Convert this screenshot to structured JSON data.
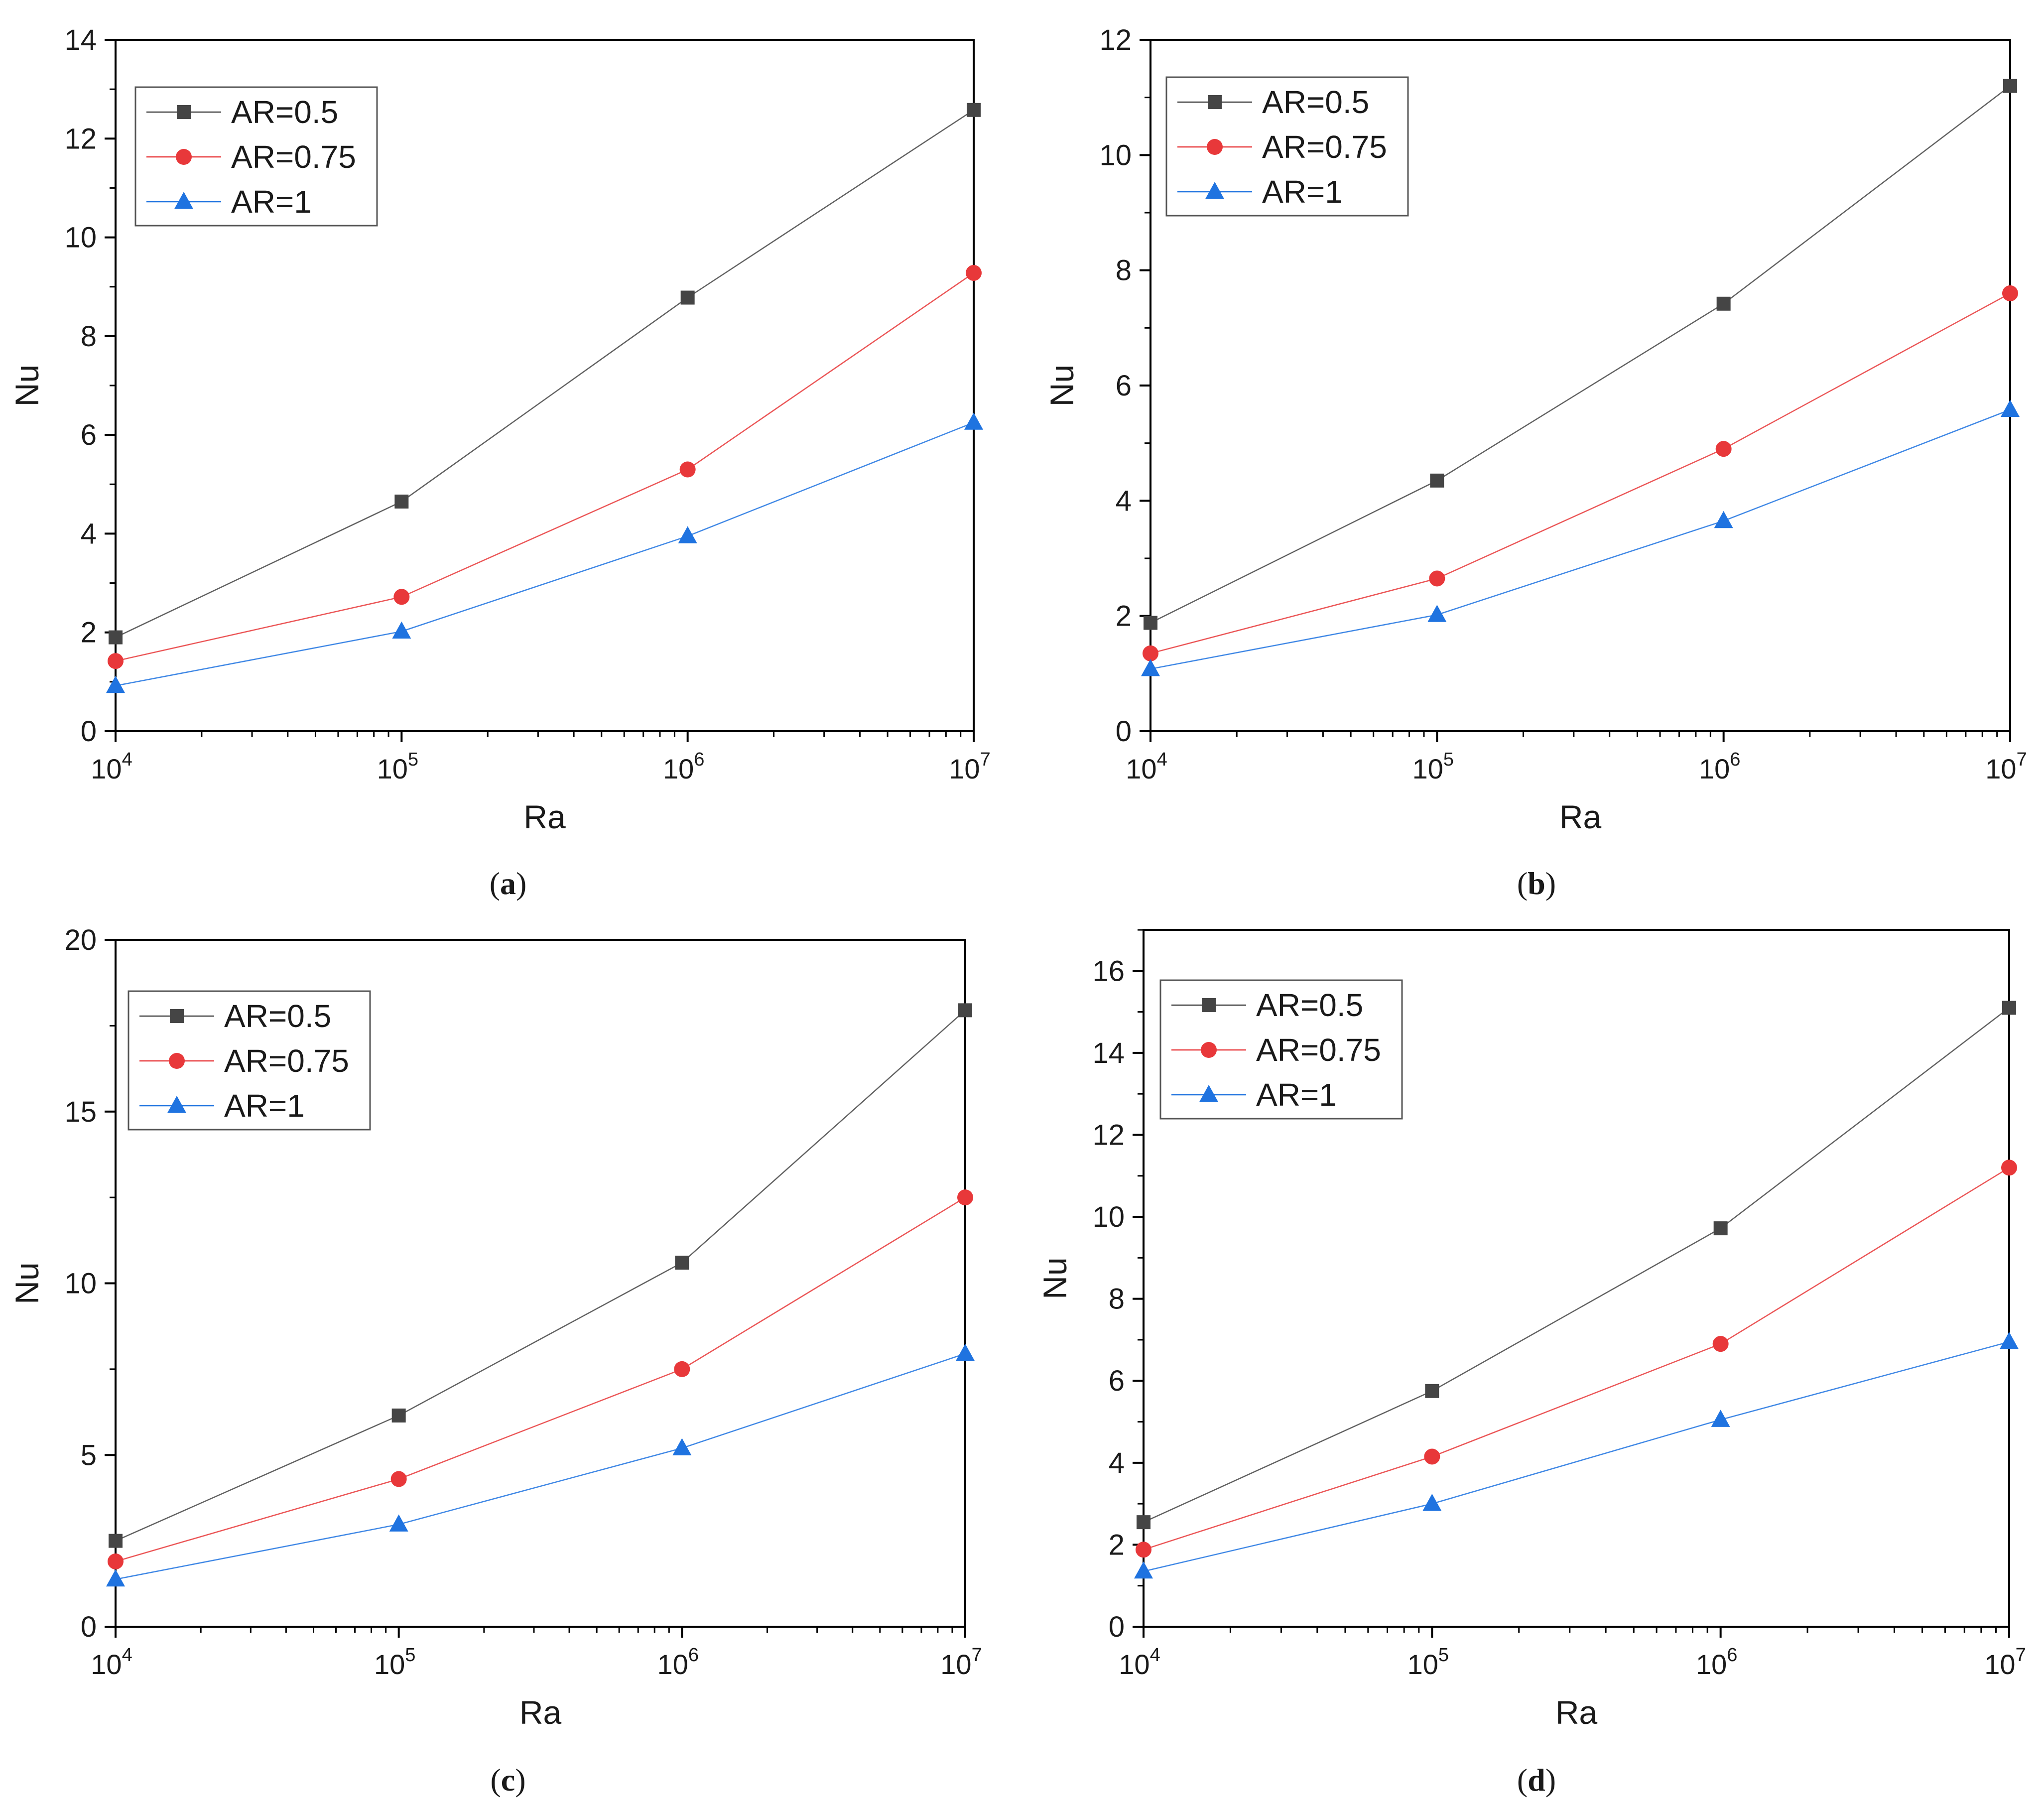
{
  "figure": {
    "colors": {
      "ar05": "#454545",
      "ar075": "#e8383a",
      "ar1": "#1f73e0",
      "axis": "#000000",
      "legend_border": "#555555"
    }
  },
  "chart_data": [
    {
      "id": "a",
      "type": "line",
      "caption": "(a)",
      "xlabel": "Ra",
      "ylabel": "Nu",
      "x_scale": "log",
      "xlim": [
        10000,
        10000000
      ],
      "x": [
        10000,
        100000,
        1000000,
        10000000
      ],
      "xticks": [
        {
          "base": "10",
          "exp": "4"
        },
        {
          "base": "10",
          "exp": "5"
        },
        {
          "base": "10",
          "exp": "6"
        },
        {
          "base": "10",
          "exp": "7"
        }
      ],
      "ylim": [
        0,
        14
      ],
      "yticks": [
        "0",
        "2",
        "4",
        "6",
        "8",
        "10",
        "12",
        "14"
      ],
      "y_tick_values": [
        0,
        2,
        4,
        6,
        8,
        10,
        12,
        14
      ],
      "legend_position": "top-left",
      "series": [
        {
          "name": "AR=0.5",
          "marker": "square",
          "color": "#454545",
          "values": [
            1.9,
            4.65,
            8.78,
            12.58
          ]
        },
        {
          "name": "AR=0.75",
          "marker": "circle",
          "color": "#e8383a",
          "values": [
            1.42,
            2.72,
            5.3,
            9.28
          ]
        },
        {
          "name": "AR=1",
          "marker": "triangle",
          "color": "#1f73e0",
          "values": [
            0.92,
            2.02,
            3.95,
            6.25
          ]
        }
      ]
    },
    {
      "id": "b",
      "type": "line",
      "caption": "(b)",
      "xlabel": "Ra",
      "ylabel": "Nu",
      "x_scale": "log",
      "xlim": [
        10000,
        10000000
      ],
      "x": [
        10000,
        100000,
        1000000,
        10000000
      ],
      "xticks": [
        {
          "base": "10",
          "exp": "4"
        },
        {
          "base": "10",
          "exp": "5"
        },
        {
          "base": "10",
          "exp": "6"
        },
        {
          "base": "10",
          "exp": "7"
        }
      ],
      "ylim": [
        0,
        12
      ],
      "yticks": [
        "0",
        "2",
        "4",
        "6",
        "8",
        "10",
        "12"
      ],
      "y_tick_values": [
        0,
        2,
        4,
        6,
        8,
        10,
        12
      ],
      "legend_position": "top-left",
      "series": [
        {
          "name": "AR=0.5",
          "marker": "square",
          "color": "#454545",
          "values": [
            1.88,
            4.35,
            7.42,
            11.2
          ]
        },
        {
          "name": "AR=0.75",
          "marker": "circle",
          "color": "#e8383a",
          "values": [
            1.35,
            2.65,
            4.9,
            7.6
          ]
        },
        {
          "name": "AR=1",
          "marker": "triangle",
          "color": "#1f73e0",
          "values": [
            1.08,
            2.02,
            3.65,
            5.58
          ]
        }
      ]
    },
    {
      "id": "c",
      "type": "line",
      "caption": "(c)",
      "xlabel": "Ra",
      "ylabel": "Nu",
      "x_scale": "log",
      "xlim": [
        10000,
        10000000
      ],
      "x": [
        10000,
        100000,
        1000000,
        10000000
      ],
      "xticks": [
        {
          "base": "10",
          "exp": "4"
        },
        {
          "base": "10",
          "exp": "5"
        },
        {
          "base": "10",
          "exp": "6"
        },
        {
          "base": "10",
          "exp": "7"
        }
      ],
      "ylim": [
        0,
        20
      ],
      "yticks": [
        "0",
        "5",
        "10",
        "15",
        "20"
      ],
      "y_tick_values": [
        0,
        5,
        10,
        15,
        20
      ],
      "legend_position": "top-left",
      "series": [
        {
          "name": "AR=0.5",
          "marker": "square",
          "color": "#454545",
          "values": [
            2.5,
            6.15,
            10.6,
            17.95
          ]
        },
        {
          "name": "AR=0.75",
          "marker": "circle",
          "color": "#e8383a",
          "values": [
            1.9,
            4.3,
            7.5,
            12.5
          ]
        },
        {
          "name": "AR=1",
          "marker": "triangle",
          "color": "#1f73e0",
          "values": [
            1.38,
            2.98,
            5.2,
            7.95
          ]
        }
      ]
    },
    {
      "id": "d",
      "type": "line",
      "caption": "(d)",
      "xlabel": "Ra",
      "ylabel": "Nu",
      "x_scale": "log",
      "xlim": [
        10000,
        10000000
      ],
      "x": [
        10000,
        100000,
        1000000,
        10000000
      ],
      "xticks": [
        {
          "base": "10",
          "exp": "4"
        },
        {
          "base": "10",
          "exp": "5"
        },
        {
          "base": "10",
          "exp": "6"
        },
        {
          "base": "10",
          "exp": "7"
        }
      ],
      "ylim": [
        0,
        17
      ],
      "yticks": [
        "0",
        "2",
        "4",
        "6",
        "8",
        "10",
        "12",
        "14",
        "16"
      ],
      "y_tick_values": [
        0,
        2,
        4,
        6,
        8,
        10,
        12,
        14,
        16
      ],
      "legend_position": "top-left",
      "series": [
        {
          "name": "AR=0.5",
          "marker": "square",
          "color": "#454545",
          "values": [
            2.55,
            5.75,
            9.72,
            15.1
          ]
        },
        {
          "name": "AR=0.75",
          "marker": "circle",
          "color": "#e8383a",
          "values": [
            1.88,
            4.15,
            6.9,
            11.2
          ]
        },
        {
          "name": "AR=1",
          "marker": "triangle",
          "color": "#1f73e0",
          "values": [
            1.35,
            3.0,
            5.05,
            6.95
          ]
        }
      ]
    }
  ]
}
